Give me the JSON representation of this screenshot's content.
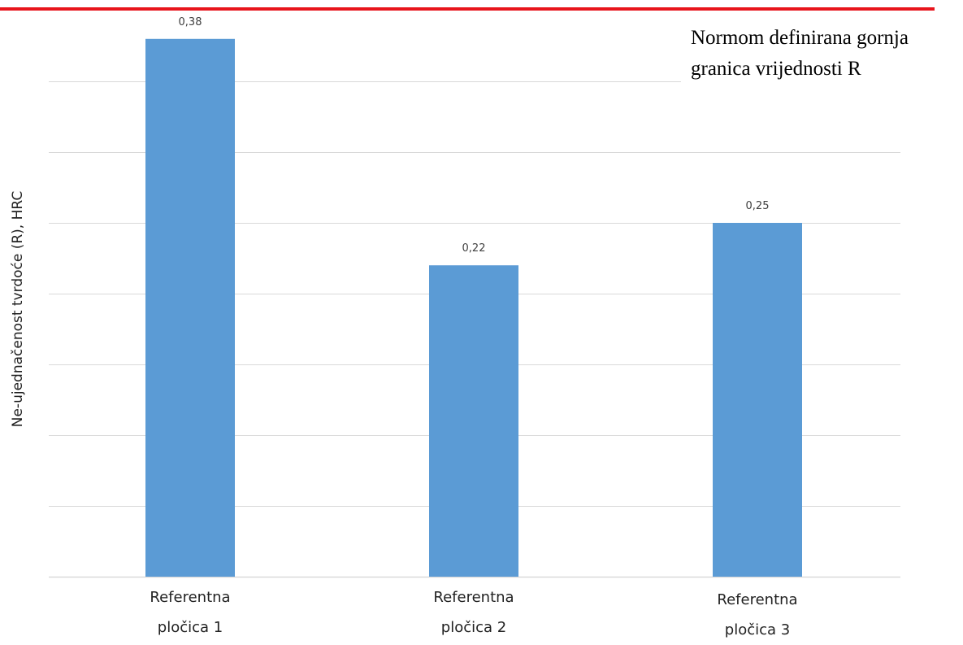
{
  "chart_data": {
    "type": "bar",
    "categories": [
      [
        "Referentna",
        "pločica 1"
      ],
      [
        "Referentna",
        "pločica 2"
      ],
      [
        "Referentna",
        "pločica 3"
      ]
    ],
    "values": [
      0.38,
      0.22,
      0.25
    ],
    "data_labels": [
      "0,38",
      "0,22",
      "0,25"
    ],
    "ylabel": "Ne-ujednačenost  tvrdoće  (R), HRC",
    "xlabel": "",
    "ylim": [
      0,
      0.4
    ],
    "grid": true,
    "reference_line": {
      "color": "#e8141c",
      "annotation": [
        "Normom definirana gornja",
        "granica vrijednosti R"
      ]
    },
    "bar_color": "#5b9bd5",
    "grid_color": "#d9d9d9"
  }
}
